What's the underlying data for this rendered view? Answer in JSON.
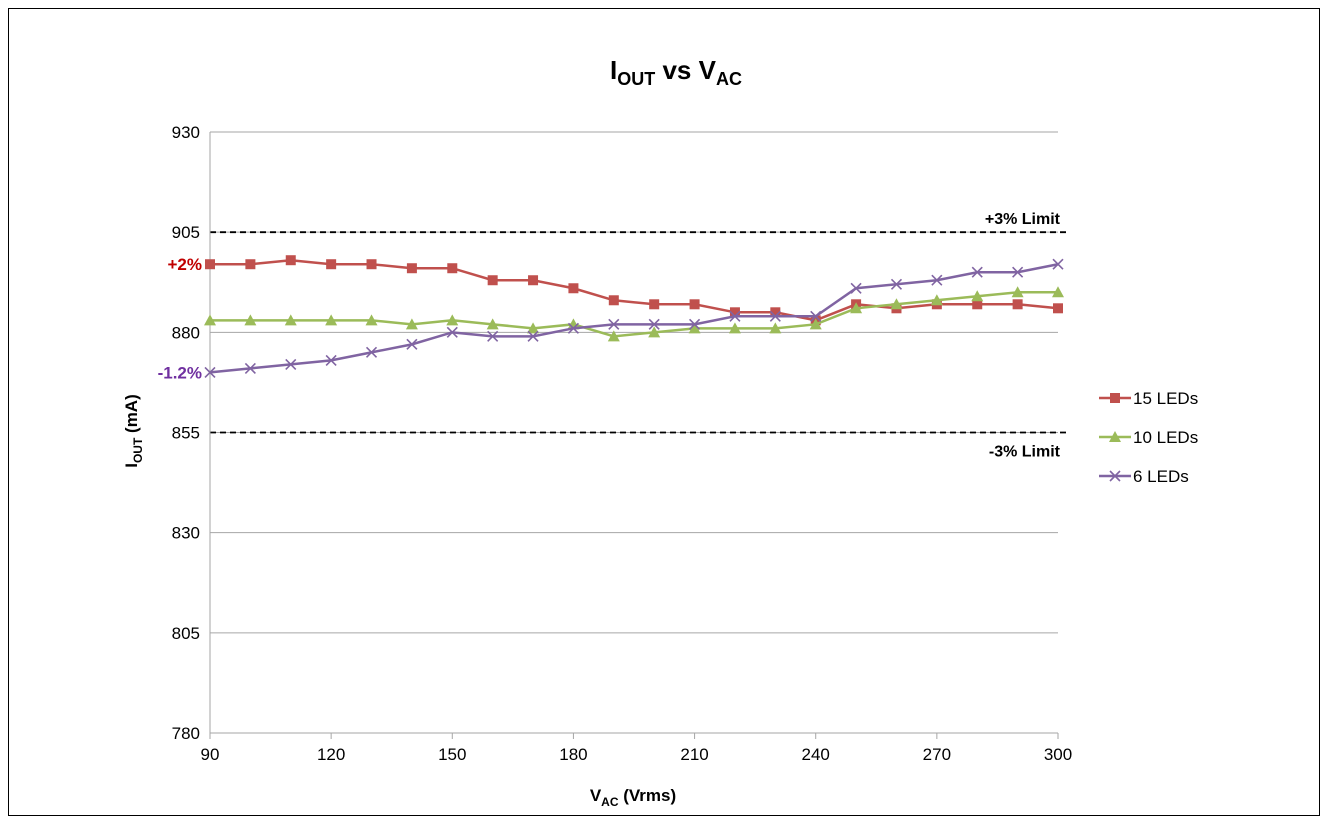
{
  "chart_data": {
    "type": "line",
    "title": {
      "main_1": "I",
      "sub_1": "OUT",
      "mid": " vs V",
      "sub_2": "AC"
    },
    "xlabel": {
      "main": "V",
      "sub": "AC",
      "rest": " (Vrms)"
    },
    "ylabel": {
      "main": "I",
      "sub": "OUT",
      "rest": " (mA)"
    },
    "xlim": [
      90,
      300
    ],
    "ylim": [
      780,
      930
    ],
    "x_ticks": [
      "90",
      "120",
      "150",
      "180",
      "210",
      "240",
      "270",
      "300"
    ],
    "y_ticks": [
      "930",
      "905",
      "880",
      "855",
      "830",
      "805",
      "780"
    ],
    "grid": "horizontal",
    "legend_position": "right",
    "x": [
      90,
      100,
      110,
      120,
      130,
      140,
      150,
      160,
      170,
      180,
      190,
      200,
      210,
      220,
      230,
      240,
      250,
      260,
      270,
      280,
      290,
      300
    ],
    "series": [
      {
        "name": "15 LEDs",
        "color": "#c0504d",
        "marker": "square",
        "values": [
          897,
          897,
          898,
          897,
          897,
          896,
          896,
          893,
          893,
          891,
          888,
          887,
          887,
          885,
          885,
          883,
          887,
          886,
          887,
          887,
          887,
          886
        ]
      },
      {
        "name": "10 LEDs",
        "color": "#9bbb59",
        "marker": "triangle",
        "values": [
          883,
          883,
          883,
          883,
          883,
          882,
          883,
          882,
          881,
          882,
          879,
          880,
          881,
          881,
          881,
          882,
          886,
          887,
          888,
          889,
          890,
          890
        ]
      },
      {
        "name": "6 LEDs",
        "color": "#8064a2",
        "marker": "x",
        "values": [
          870,
          871,
          872,
          873,
          875,
          877,
          880,
          879,
          879,
          881,
          882,
          882,
          882,
          884,
          884,
          884,
          891,
          892,
          893,
          895,
          895,
          897
        ]
      }
    ],
    "limits": [
      {
        "value": 905,
        "label": "+3% Limit"
      },
      {
        "value": 855,
        "label": "-3% Limit"
      }
    ],
    "annotations": [
      {
        "text": "+2%",
        "color": "#c00000",
        "y": 897
      },
      {
        "text": "-1.2%",
        "color": "#7030a0",
        "y": 870
      }
    ]
  }
}
